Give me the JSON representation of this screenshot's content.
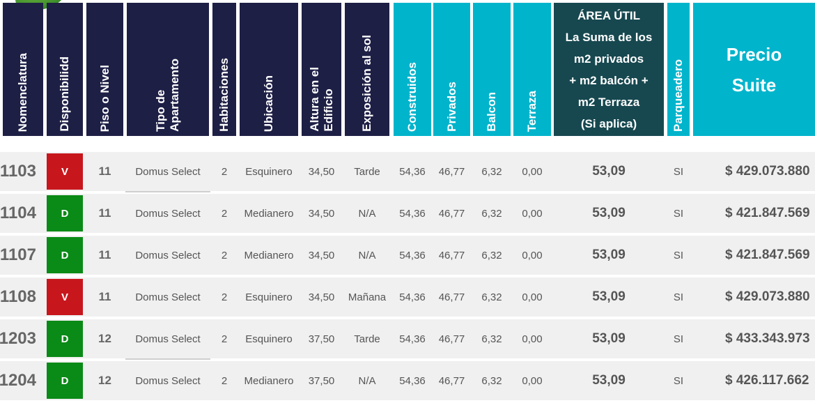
{
  "headers": {
    "nomenclatura": "Nomenclatura",
    "disponibilidad": "Disponibilidd",
    "piso": "Piso o Nivel",
    "tipo": "Tipo de\nApartamento",
    "habitaciones": "Habitaciones",
    "ubicacion": "Ubicación",
    "altura": "Altura en el\nEdificio",
    "exposicion": "Exposición al sol",
    "construidos": "Construidos",
    "privados": "Privados",
    "balcon": "Balcon",
    "terraza": "Terraza",
    "area_util": "ÁREA ÚTIL\nLa Suma de los\nm2 privados\n+ m2 balcón +\nm2 Terraza\n(Si aplica)",
    "parqueadero": "Parqueadero",
    "precio": "Precio\nSuite"
  },
  "colors": {
    "header_dark": "#1e1f45",
    "header_teal": "#00b4cc",
    "header_green": "#174850",
    "vendido": "#c8161d",
    "disponible": "#0a8a17",
    "row_bg": "#f0f0f0"
  },
  "rows": [
    {
      "nom": "1103",
      "disp": "V",
      "disp_color": "#c8161d",
      "piso": "11",
      "tipo": "Domus Select",
      "hab": "2",
      "ubic": "Esquinero",
      "altura": "34,50",
      "expo": "Tarde",
      "const": "54,36",
      "priv": "46,77",
      "balcon": "6,32",
      "terraza": "0,00",
      "area": "53,09",
      "parq": "SI",
      "precio": "$ 429.073.880"
    },
    {
      "nom": "1104",
      "disp": "D",
      "disp_color": "#0a8a17",
      "piso": "11",
      "tipo": "Domus Select",
      "hab": "2",
      "ubic": "Medianero",
      "altura": "34,50",
      "expo": "N/A",
      "const": "54,36",
      "priv": "46,77",
      "balcon": "6,32",
      "terraza": "0,00",
      "area": "53,09",
      "parq": "SI",
      "precio": "$ 421.847.569"
    },
    {
      "nom": "1107",
      "disp": "D",
      "disp_color": "#0a8a17",
      "piso": "11",
      "tipo": "Domus Select",
      "hab": "2",
      "ubic": "Medianero",
      "altura": "34,50",
      "expo": "N/A",
      "const": "54,36",
      "priv": "46,77",
      "balcon": "6,32",
      "terraza": "0,00",
      "area": "53,09",
      "parq": "SI",
      "precio": "$ 421.847.569"
    },
    {
      "nom": "1108",
      "disp": "V",
      "disp_color": "#c8161d",
      "piso": "11",
      "tipo": "Domus Select",
      "hab": "2",
      "ubic": "Esquinero",
      "altura": "34,50",
      "expo": "Mañana",
      "const": "54,36",
      "priv": "46,77",
      "balcon": "6,32",
      "terraza": "0,00",
      "area": "53,09",
      "parq": "SI",
      "precio": "$ 429.073.880"
    },
    {
      "nom": "1203",
      "disp": "D",
      "disp_color": "#0a8a17",
      "piso": "12",
      "tipo": "Domus Select",
      "hab": "2",
      "ubic": "Esquinero",
      "altura": "37,50",
      "expo": "Tarde",
      "const": "54,36",
      "priv": "46,77",
      "balcon": "6,32",
      "terraza": "0,00",
      "area": "53,09",
      "parq": "SI",
      "precio": "$ 433.343.973"
    },
    {
      "nom": "1204",
      "disp": "D",
      "disp_color": "#0a8a17",
      "piso": "12",
      "tipo": "Domus Select",
      "hab": "2",
      "ubic": "Medianero",
      "altura": "37,50",
      "expo": "N/A",
      "const": "54,36",
      "priv": "46,77",
      "balcon": "6,32",
      "terraza": "0,00",
      "area": "53,09",
      "parq": "SI",
      "precio": "$ 426.117.662"
    }
  ]
}
